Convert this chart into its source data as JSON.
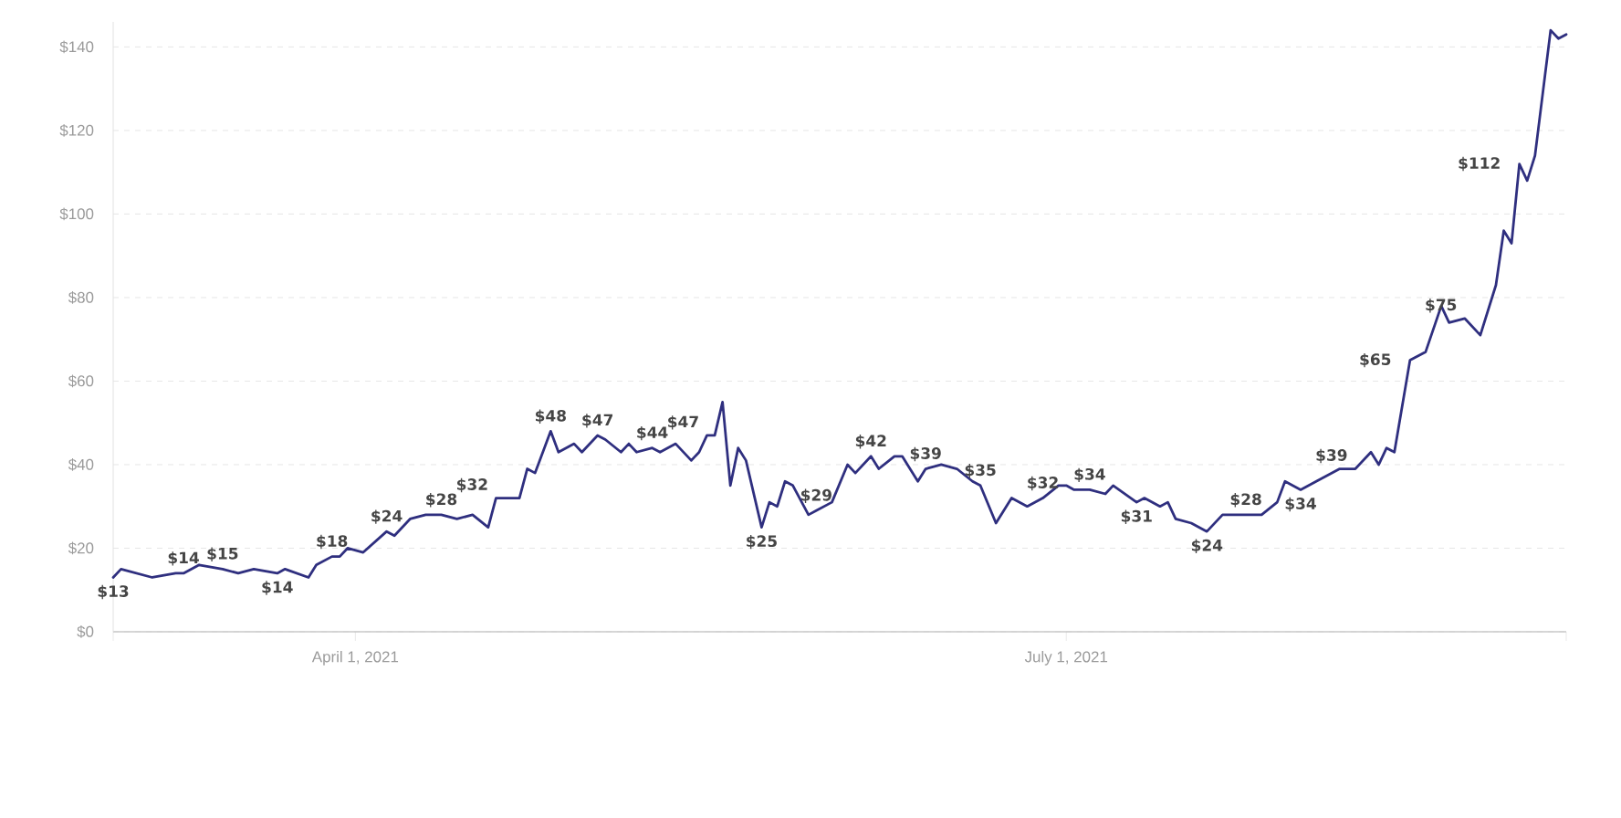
{
  "chart_data": {
    "type": "line",
    "x": [
      "2021-03-01",
      "2021-03-02",
      "2021-03-04",
      "2021-03-06",
      "2021-03-09",
      "2021-03-10",
      "2021-03-12",
      "2021-03-15",
      "2021-03-17",
      "2021-03-19",
      "2021-03-22",
      "2021-03-23",
      "2021-03-26",
      "2021-03-27",
      "2021-03-29",
      "2021-03-30",
      "2021-03-31",
      "2021-04-02",
      "2021-04-05",
      "2021-04-06",
      "2021-04-08",
      "2021-04-10",
      "2021-04-12",
      "2021-04-14",
      "2021-04-16",
      "2021-04-18",
      "2021-04-19",
      "2021-04-22",
      "2021-04-23",
      "2021-04-24",
      "2021-04-26",
      "2021-04-27",
      "2021-04-29",
      "2021-04-30",
      "2021-05-02",
      "2021-05-03",
      "2021-05-05",
      "2021-05-06",
      "2021-05-07",
      "2021-05-09",
      "2021-05-10",
      "2021-05-12",
      "2021-05-14",
      "2021-05-15",
      "2021-05-16",
      "2021-05-17",
      "2021-05-18",
      "2021-05-19",
      "2021-05-20",
      "2021-05-21",
      "2021-05-23",
      "2021-05-24",
      "2021-05-25",
      "2021-05-26",
      "2021-05-27",
      "2021-05-29",
      "2021-05-30",
      "2021-06-01",
      "2021-06-03",
      "2021-06-04",
      "2021-06-06",
      "2021-06-07",
      "2021-06-09",
      "2021-06-10",
      "2021-06-12",
      "2021-06-13",
      "2021-06-15",
      "2021-06-17",
      "2021-06-19",
      "2021-06-20",
      "2021-06-22",
      "2021-06-24",
      "2021-06-26",
      "2021-06-28",
      "2021-06-30",
      "2021-07-01",
      "2021-07-02",
      "2021-07-04",
      "2021-07-06",
      "2021-07-07",
      "2021-07-10",
      "2021-07-11",
      "2021-07-13",
      "2021-07-14",
      "2021-07-15",
      "2021-07-17",
      "2021-07-19",
      "2021-07-21",
      "2021-07-24",
      "2021-07-26",
      "2021-07-28",
      "2021-07-29",
      "2021-07-31",
      "2021-08-02",
      "2021-08-05",
      "2021-08-07",
      "2021-08-09",
      "2021-08-10",
      "2021-08-11",
      "2021-08-12",
      "2021-08-14",
      "2021-08-16",
      "2021-08-18",
      "2021-08-19",
      "2021-08-21",
      "2021-08-23",
      "2021-08-25",
      "2021-08-26",
      "2021-08-27",
      "2021-08-28",
      "2021-08-29",
      "2021-08-30",
      "2021-09-01",
      "2021-09-02",
      "2021-09-03"
    ],
    "series": [
      {
        "color": "#2f2f7f",
        "values": [
          13,
          15,
          14,
          13,
          14,
          14,
          16,
          15,
          14,
          15,
          14,
          15,
          13,
          16,
          18,
          18,
          20,
          19,
          24,
          23,
          27,
          28,
          28,
          27,
          28,
          25,
          32,
          32,
          39,
          38,
          48,
          43,
          45,
          43,
          47,
          46,
          43,
          45,
          43,
          44,
          43,
          45,
          41,
          43,
          47,
          47,
          55,
          35,
          44,
          41,
          25,
          31,
          30,
          36,
          35,
          28,
          29,
          31,
          40,
          38,
          42,
          39,
          42,
          42,
          36,
          39,
          40,
          39,
          36,
          35,
          26,
          32,
          30,
          32,
          35,
          35,
          34,
          34,
          33,
          35,
          31,
          32,
          30,
          31,
          27,
          26,
          24,
          28,
          28,
          28,
          31,
          36,
          34,
          36,
          39,
          39,
          43,
          40,
          44,
          43,
          65,
          67,
          78,
          74,
          75,
          71,
          83,
          96,
          93,
          112,
          108,
          114,
          144,
          142,
          143
        ],
        "value_labels": [
          "$13",
          null,
          null,
          null,
          null,
          "$14",
          null,
          "$15",
          null,
          null,
          "$14",
          null,
          null,
          null,
          "$18",
          null,
          null,
          null,
          "$24",
          null,
          null,
          null,
          "$28",
          null,
          null,
          null,
          "$32",
          null,
          null,
          null,
          "$48",
          null,
          null,
          null,
          "$47",
          null,
          null,
          null,
          null,
          "$44",
          null,
          null,
          null,
          null,
          "$47",
          null,
          null,
          null,
          null,
          null,
          "$25",
          null,
          null,
          null,
          null,
          null,
          "$29",
          null,
          null,
          null,
          "$42",
          null,
          null,
          null,
          null,
          "$39",
          null,
          null,
          null,
          "$35",
          null,
          null,
          null,
          "$32",
          null,
          null,
          null,
          "$34",
          null,
          null,
          "$31",
          null,
          null,
          null,
          null,
          null,
          "$24",
          null,
          "$28",
          null,
          null,
          null,
          "$34",
          null,
          null,
          "$39",
          null,
          null,
          null,
          null,
          "$65",
          null,
          null,
          null,
          "$75",
          null,
          null,
          null,
          null,
          "$112",
          null,
          null,
          null,
          null,
          null
        ]
      }
    ],
    "xlim": [
      "2021-03-01",
      "2021-09-03"
    ],
    "xticks": [
      {
        "value": "2021-03-01",
        "label": null
      },
      {
        "value": "2021-04-01",
        "label": "April 1, 2021"
      },
      {
        "value": "2021-07-01",
        "label": "July 1, 2021"
      },
      {
        "value": "2021-09-03",
        "label": null
      }
    ],
    "ylim": [
      0,
      146
    ],
    "yticks": [
      {
        "value": 0,
        "label": "$0"
      },
      {
        "value": 20,
        "label": "$20"
      },
      {
        "value": 40,
        "label": "$40"
      },
      {
        "value": 60,
        "label": "$60"
      },
      {
        "value": 80,
        "label": "$80"
      },
      {
        "value": 100,
        "label": "$100"
      },
      {
        "value": 120,
        "label": "$120"
      },
      {
        "value": 140,
        "label": "$140"
      }
    ],
    "grid": "y",
    "marker": "none",
    "line_style": "solid"
  }
}
